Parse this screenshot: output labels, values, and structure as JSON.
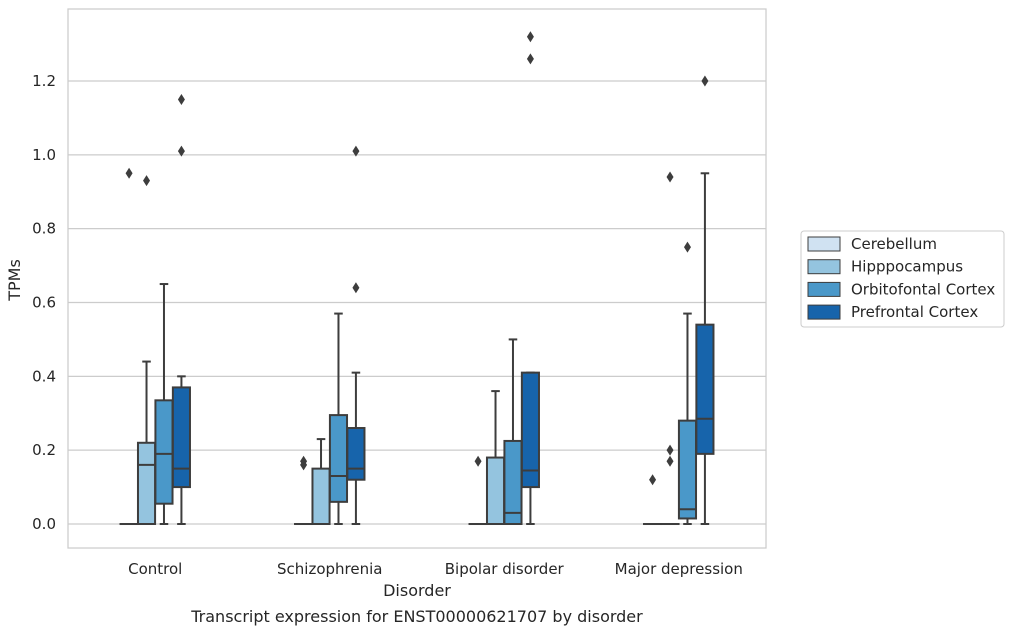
{
  "chart_data": {
    "type": "box",
    "xlabel": "Disorder",
    "ylabel": "TPMs",
    "caption": "Transcript expression for ENST00000621707 by disorder",
    "ylim": [
      -0.065,
      1.395
    ],
    "yticks": [
      "0.0",
      "0.2",
      "0.4",
      "0.6",
      "0.8",
      "1.0",
      "1.2"
    ],
    "grid": true,
    "legend_position": "right",
    "categories": [
      "Control",
      "Schizophrenia",
      "Bipolar disorder",
      "Major depression"
    ],
    "series": [
      {
        "name": "Cerebellum",
        "color": "#d0e2f2",
        "boxes": [
          {
            "whislo": 0.0,
            "q1": 0.0,
            "med": 0.0,
            "q3": 0.0,
            "whishi": 0.0,
            "fliers": [
              0.95
            ]
          },
          {
            "whislo": 0.0,
            "q1": 0.0,
            "med": 0.0,
            "q3": 0.0,
            "whishi": 0.0,
            "fliers": [
              0.17,
              0.16
            ]
          },
          {
            "whislo": 0.0,
            "q1": 0.0,
            "med": 0.0,
            "q3": 0.0,
            "whishi": 0.0,
            "fliers": [
              0.17
            ]
          },
          {
            "whislo": 0.0,
            "q1": 0.0,
            "med": 0.0,
            "q3": 0.0,
            "whishi": 0.0,
            "fliers": [
              0.12
            ]
          }
        ]
      },
      {
        "name": "Hipppocampus",
        "color": "#94c4df",
        "boxes": [
          {
            "whislo": 0.0,
            "q1": 0.0,
            "med": 0.16,
            "q3": 0.22,
            "whishi": 0.44,
            "fliers": [
              0.93
            ]
          },
          {
            "whislo": 0.0,
            "q1": 0.0,
            "med": 0.0,
            "q3": 0.15,
            "whishi": 0.23,
            "fliers": []
          },
          {
            "whislo": 0.0,
            "q1": 0.0,
            "med": 0.0,
            "q3": 0.18,
            "whishi": 0.36,
            "fliers": []
          },
          {
            "whislo": 0.0,
            "q1": 0.0,
            "med": 0.0,
            "q3": 0.0,
            "whishi": 0.0,
            "fliers": [
              0.94,
              0.2,
              0.17
            ]
          }
        ]
      },
      {
        "name": "Orbitofontal Cortex",
        "color": "#4a98c9",
        "boxes": [
          {
            "whislo": 0.0,
            "q1": 0.055,
            "med": 0.19,
            "q3": 0.335,
            "whishi": 0.65,
            "fliers": []
          },
          {
            "whislo": 0.0,
            "q1": 0.06,
            "med": 0.13,
            "q3": 0.295,
            "whishi": 0.57,
            "fliers": []
          },
          {
            "whislo": 0.0,
            "q1": 0.0,
            "med": 0.03,
            "q3": 0.225,
            "whishi": 0.5,
            "fliers": []
          },
          {
            "whislo": 0.0,
            "q1": 0.015,
            "med": 0.04,
            "q3": 0.28,
            "whishi": 0.57,
            "fliers": [
              0.75
            ]
          }
        ]
      },
      {
        "name": "Prefrontal Cortex",
        "color": "#1764ab",
        "boxes": [
          {
            "whislo": 0.0,
            "q1": 0.1,
            "med": 0.15,
            "q3": 0.37,
            "whishi": 0.4,
            "fliers": [
              1.15,
              1.01
            ]
          },
          {
            "whislo": 0.0,
            "q1": 0.12,
            "med": 0.15,
            "q3": 0.26,
            "whishi": 0.41,
            "fliers": [
              1.01,
              0.64
            ]
          },
          {
            "whislo": 0.0,
            "q1": 0.1,
            "med": 0.145,
            "q3": 0.41,
            "whishi": 0.41,
            "fliers": [
              1.32,
              1.26
            ]
          },
          {
            "whislo": 0.0,
            "q1": 0.19,
            "med": 0.285,
            "q3": 0.54,
            "whishi": 0.95,
            "fliers": [
              1.2
            ]
          }
        ]
      }
    ]
  }
}
